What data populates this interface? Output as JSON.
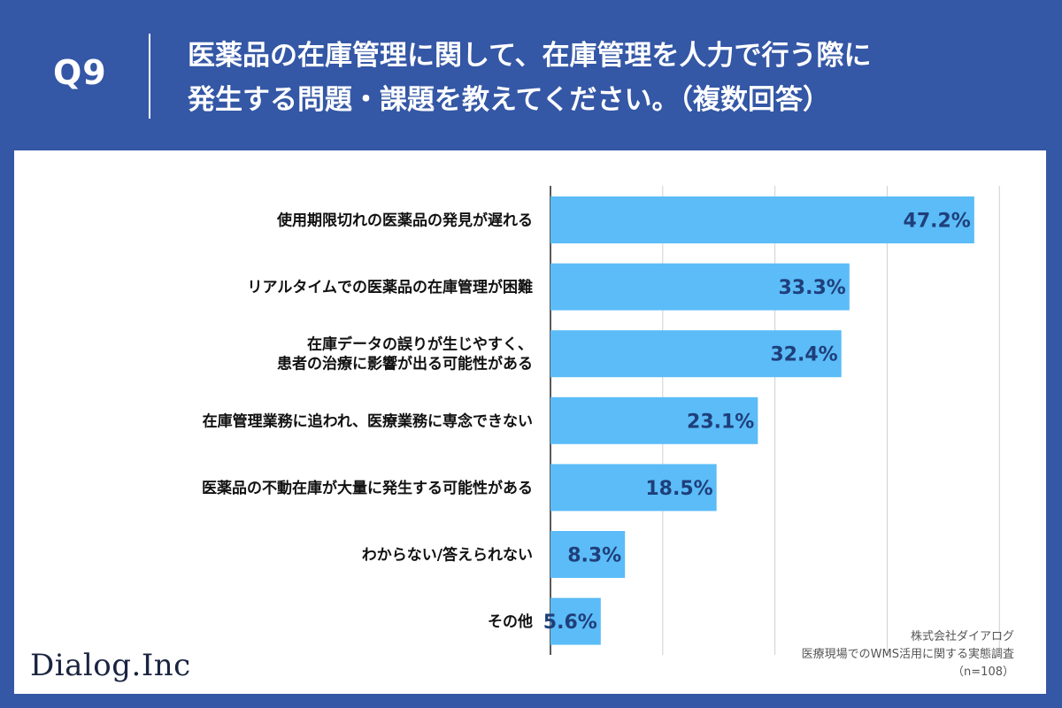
{
  "header": {
    "question_no": "Q9",
    "title_line1": "医薬品の在庫管理に関して、在庫管理を人力で行う際に",
    "title_line2": "発生する問題・課題を教えてください。（複数回答）"
  },
  "footer": {
    "logo": "Dialog.Inc",
    "company": "株式会社ダイアログ",
    "survey": "医療現場でのWMS活用に関する実態調査",
    "sample": "（n=108）"
  },
  "colors": {
    "background": "#3457a6",
    "bar": "#5bbcf8",
    "value_text": "#1f3f7a"
  },
  "chart_data": {
    "type": "bar",
    "orientation": "horizontal",
    "title": "医薬品の在庫管理に関して、在庫管理を人力で行う際に発生する問題・課題を教えてください。（複数回答）",
    "categories": [
      [
        "使用期限切れの医薬品の発見が遅れる"
      ],
      [
        "リアルタイムでの医薬品の在庫管理が困難"
      ],
      [
        "在庫データの誤りが生じやすく、",
        "患者の治療に影響が出る可能性がある"
      ],
      [
        "在庫管理業務に追われ、医療業務に専念できない"
      ],
      [
        "医薬品の不動在庫が大量に発生する可能性がある"
      ],
      [
        "わからない/答えられない"
      ],
      [
        "その他"
      ]
    ],
    "values": [
      47.2,
      33.3,
      32.4,
      23.1,
      18.5,
      8.3,
      5.6
    ],
    "value_labels": [
      "47.2%",
      "33.3%",
      "32.4%",
      "23.1%",
      "18.5%",
      "8.3%",
      "5.6%"
    ],
    "xlim": [
      0,
      55
    ],
    "gridlines": [
      0,
      12.5,
      25,
      37.5,
      50
    ],
    "grid": true,
    "legend": "none"
  }
}
